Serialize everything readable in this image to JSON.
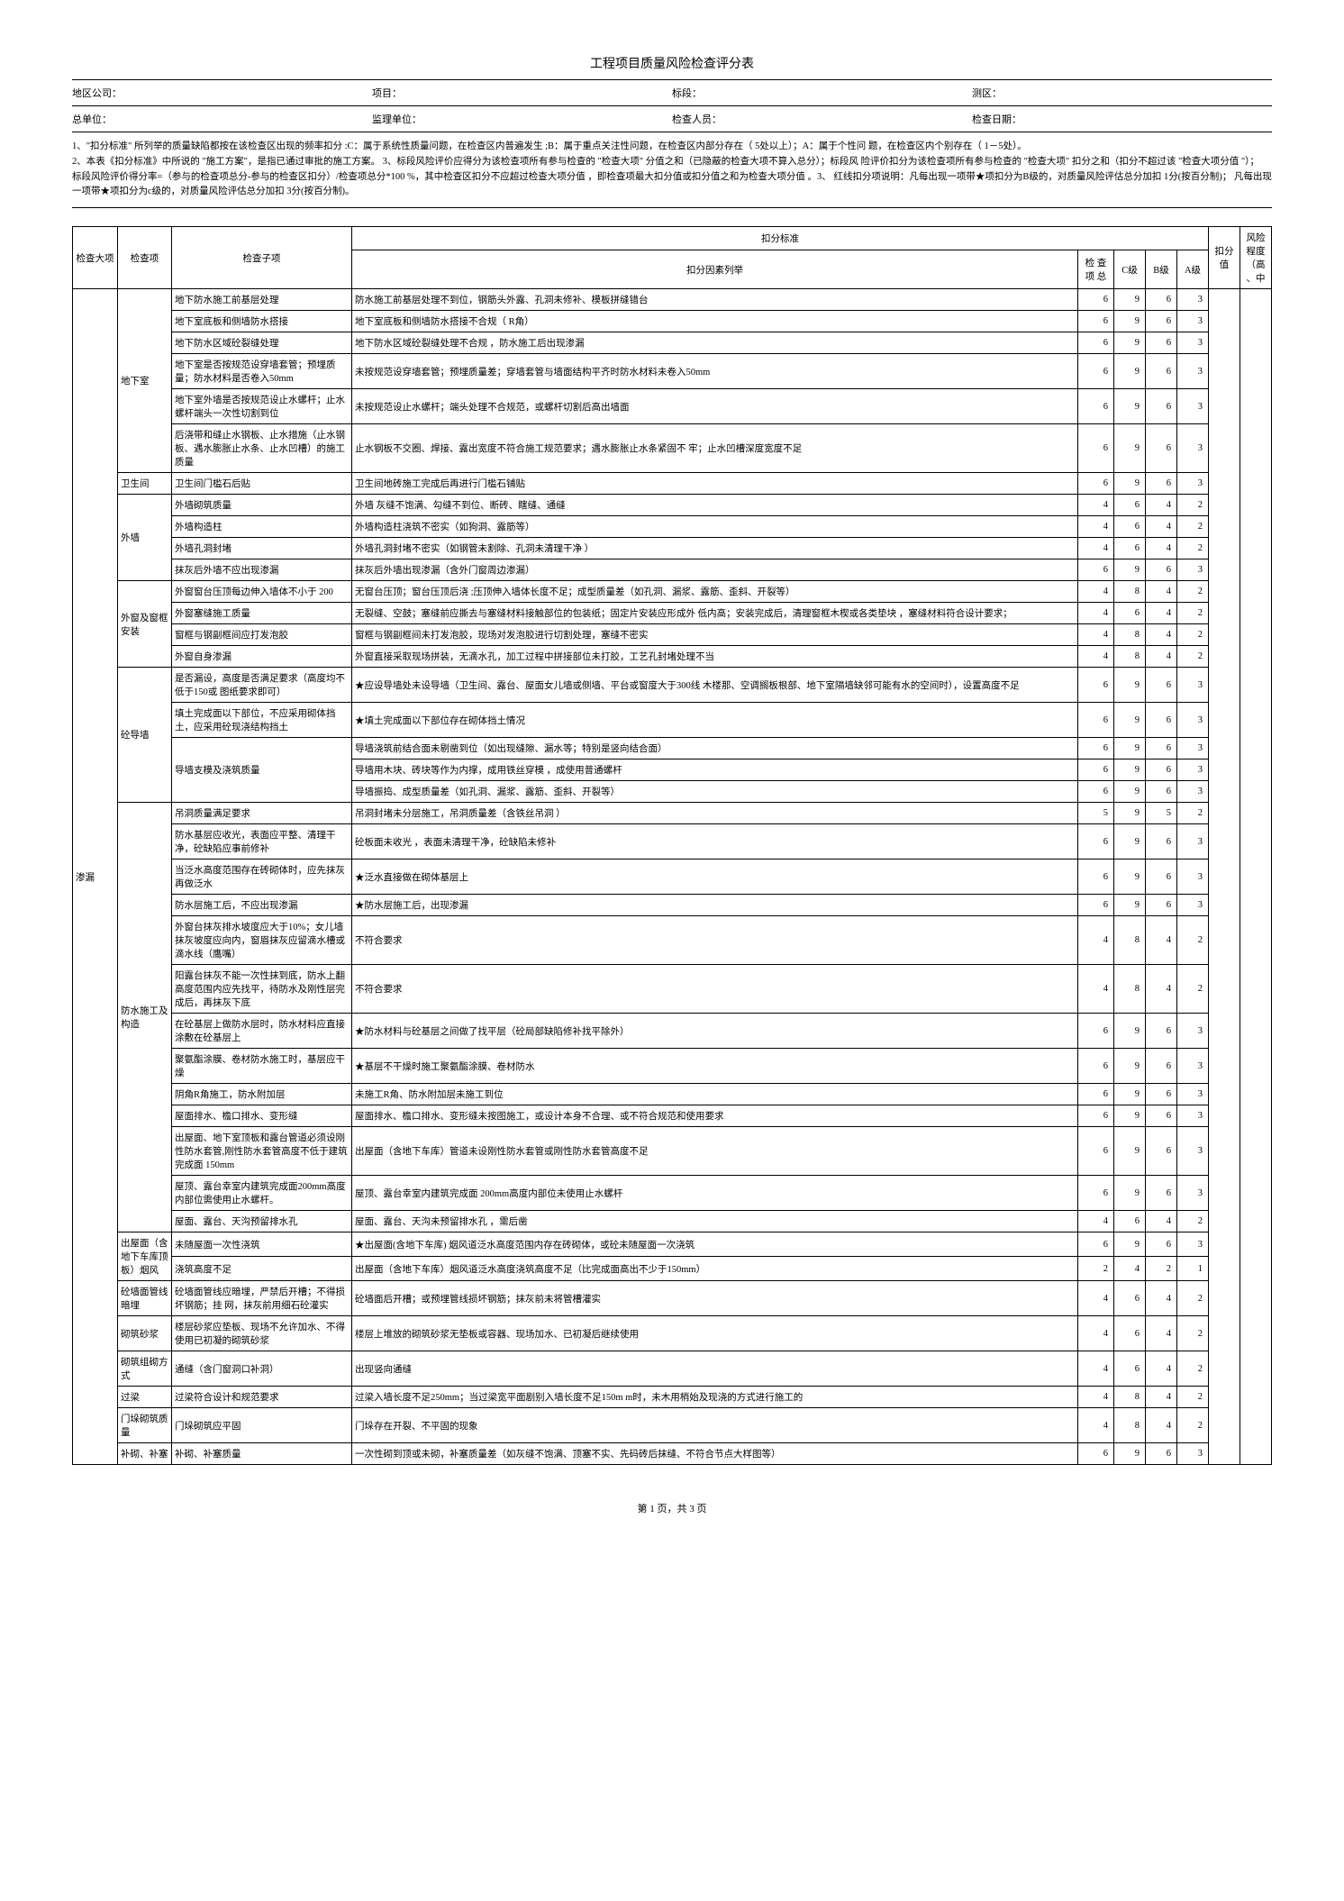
{
  "title": "工程项目质量风险检查评分表",
  "header1": {
    "region_label": "地区公司：",
    "project_label": "项目：",
    "section_label": "标段：",
    "survey_label": "测区："
  },
  "header2": {
    "general_unit_label": "总单位：",
    "supervision_label": "监理单位：",
    "inspector_label": "检查人员：",
    "date_label": "检查日期："
  },
  "notes": [
    "1、\"扣分标准\" 所列举的质量缺陷都按在该检查区出现的频率扣分  :C：属于系统性质量问题，在检查区内普遍发生 ;B：属于重点关注性问题，在检查区内部分存在（ 5处以上）；A：属于个性问 题，在检查区内个别存在（ 1－5处）。",
    "2、本表《扣分标准》中所说的 \"施工方案\"，是指已通过审批的施工方案。 3、标段风险评价应得分为该检查项所有参与检查的 \"检查大项\"       分值之和（已隐蔽的检查大项不算入总分）；标段风 险评价扣分为该检查项所有参与检查的 \"检查大项\" 扣分之和（扣分不超过该 \"检查大项分值 \"）；",
    "标段风险评价得分率=（参与的检查项总分-参与的检查区扣分）/检查项总分*100 %，其中检查区扣分不应超过检查大项分值 ，即检查项最大扣分值或扣分值之和为检查大项分值 。3、 红线扣分项说明：凡每出现一项带★项扣分为B级的，对质量风险评估总分加扣 1分(按百分制)； 凡每出现一项带★项扣分为c级的，对质量风险评估总分加扣 3分(按百分制)。"
  ],
  "thead": {
    "major": "检查大项",
    "check": "检查项",
    "sub": "检查子项",
    "std": "扣分标准",
    "factors": "扣分因素列举",
    "total": "检 查项 总",
    "c": "C级",
    "b": "B级",
    "a": "A级",
    "deduct": "扣分值",
    "risk": "风险程度（高、中"
  },
  "rows": [
    {
      "major": "渗漏",
      "check": "地下室",
      "sub": "地下防水施工前基层处理",
      "std": "防水施工前基层处理不到位，钢筋头外露、孔洞未修补、模板拼缝错台",
      "t": 6,
      "c": 9,
      "b": 6,
      "a": 3
    },
    {
      "sub": "地下室底板和侧墙防水搭接",
      "std": "地下室底板和侧墙防水搭接不合规（ R角）",
      "t": 6,
      "c": 9,
      "b": 6,
      "a": 3
    },
    {
      "sub": "地下防水区域砼裂缝处理",
      "std": "地下防水区域砼裂缝处理不合规 ，防水施工后出现渗漏",
      "t": 6,
      "c": 9,
      "b": 6,
      "a": 3
    },
    {
      "sub": "地下室是否按规范设穿墙套管；预埋质量；防水材料是否卷入50mm",
      "std": "未按规范设穿墙套管；预埋质量差；穿墙套管与墙面结构平齐时防水材料未卷入50mm",
      "t": 6,
      "c": 9,
      "b": 6,
      "a": 3
    },
    {
      "sub": "地下室外墙是否按规范设止水螺杆；止水螺杆端头一次性切割到位",
      "std": "未按规范设止水螺杆；端头处理不合规范，或螺杆切割后高出墙面",
      "t": 6,
      "c": 9,
      "b": 6,
      "a": 3
    },
    {
      "sub": "后浇带和缝止水钢板、止水措施（止水钢板、遇水膨胀止水条、止水凹槽）的施工质量",
      "std": "止水钢板不交圈、焊接、露出宽度不符合施工规范要求；遇水膨胀止水条紧固不         牢；止水凹槽深度宽度不足",
      "t": 6,
      "c": 9,
      "b": 6,
      "a": 3
    },
    {
      "check": "卫生间",
      "sub": "卫生间门槛石后贴",
      "std": "卫生间地砖施工完成后再进行门槛石铺贴",
      "t": 6,
      "c": 9,
      "b": 6,
      "a": 3
    },
    {
      "check": "外墙",
      "sub": "外墙砌筑质量",
      "std": "外墙 灰缝不饱满、勾缝不到位、断砖、瞎缝、通缝",
      "t": 4,
      "c": 6,
      "b": 4,
      "a": 2
    },
    {
      "sub": "外墙构造柱",
      "std": "外墙构造柱浇筑不密实（如狗洞、露筋等）",
      "t": 4,
      "c": 6,
      "b": 4,
      "a": 2
    },
    {
      "sub": "外墙孔洞封堵",
      "std": "外墙孔洞封堵不密实（如钢管未割除、孔洞未清理干净  ）",
      "t": 4,
      "c": 6,
      "b": 4,
      "a": 2
    },
    {
      "sub": "抹灰后外墙不应出现渗漏",
      "std": "抹灰后外墙出现渗漏（含外门窗周边渗漏）",
      "t": 6,
      "c": 9,
      "b": 6,
      "a": 3
    },
    {
      "check": "外窗及窗框安装",
      "sub": "外窗窗台压顶每边伸入墙体不小于  200",
      "std": "无窗台压顶；窗台压顶后浇 ;压顶伸入墙体长度不足；成型质量差（如孔洞、漏浆、露筋、歪斜、开裂等）",
      "t": 4,
      "c": 8,
      "b": 4,
      "a": 2
    },
    {
      "sub": "外窗塞缝施工质量",
      "std": "无裂缝、空鼓；塞缝前应撕去与塞缝材料接触部位的包装纸；固定片安装应形成外  低内高；安装完成后，清理窗框木楔或各类垫块 ，塞缝材料符合设计要求；",
      "t": 4,
      "c": 6,
      "b": 4,
      "a": 2
    },
    {
      "sub": "窗框与钢副框间应打发泡胶",
      "std": "窗框与钢副框间未打发泡胶，现场对发泡胶进行切割处理，塞缝不密实",
      "t": 4,
      "c": 8,
      "b": 4,
      "a": 2
    },
    {
      "sub": "外窗自身渗漏",
      "std": "外窗直接采取现场拼装，无滴水孔，加工过程中拼接部位未打胶，工艺孔封堵处理不当",
      "t": 4,
      "c": 8,
      "b": 4,
      "a": 2
    },
    {
      "check": "砼导墙",
      "sub": "是否漏设，高度是否满足要求（高度均不低于150或 图纸要求即可）",
      "std": "★应设导墙处未设导墙（卫生间、露台、屋面女儿墙或侧墙、平台或窗度大于300线 木楼那、空调搁板根部、地下室隔墙缺邻可能有水的空间时），设置高度不足",
      "t": 6,
      "c": 9,
      "b": 6,
      "a": 3
    },
    {
      "sub": "填土完成面以下部位，不应采用砌体挡土，应采用砼现浇结构挡土",
      "std": "★填土完成面以下部位存在砌体挡土情况",
      "t": 6,
      "c": 9,
      "b": 6,
      "a": 3
    },
    {
      "sub": "导墙支模及浇筑质量",
      "std": "导墙浇筑前结合面未剔凿到位（如出现缝隙、漏水等；特别是竖向结合面）",
      "t": 6,
      "c": 9,
      "b": 6,
      "a": 3
    },
    {
      "std": "导墙用木块、砖块等作为内撑，成用铁丝穿模 ，成使用普通螺杆",
      "t": 6,
      "c": 9,
      "b": 6,
      "a": 3
    },
    {
      "std": "导墙振捣、成型质量差（如孔洞、漏浆、露筋、歪斜、开裂等）",
      "t": 6,
      "c": 9,
      "b": 6,
      "a": 3
    },
    {
      "check": "防水施工及构造",
      "sub": "吊洞质量满足要求",
      "std": "吊洞封堵未分层施工，吊洞质量差（含铁丝吊洞 ）",
      "t": 5,
      "c": 9,
      "b": 5,
      "a": 2
    },
    {
      "sub": "防水基层应收光，表面应平整、清理干净，砼缺陷应事前修补",
      "std": "砼板面未收光 ，表面未清理干净，砼缺陷未修补",
      "t": 6,
      "c": 9,
      "b": 6,
      "a": 3
    },
    {
      "sub": "当泛水高度范围存在砖砌体时，应先抹灰再做泛水",
      "std": "★泛水直接做在砌体基层上",
      "t": 6,
      "c": 9,
      "b": 6,
      "a": 3
    },
    {
      "sub": "防水层施工后，不应出现渗漏",
      "std": "★防水层施工后，出现渗漏",
      "t": 6,
      "c": 9,
      "b": 6,
      "a": 3
    },
    {
      "sub": "外窗台抹灰排水坡度应大于10%；女儿墙抹灰坡度应向内，窗眉抹灰应留滴水槽或滴水线（鹰嘴）",
      "std": "不符合要求",
      "t": 4,
      "c": 8,
      "b": 4,
      "a": 2
    },
    {
      "sub": "阳露台抹灰不能一次性抹到底，防水上翻高度范围内应先找平，待防水及刚性层完成后，再抹灰下底",
      "std": "不符合要求",
      "t": 4,
      "c": 8,
      "b": 4,
      "a": 2
    },
    {
      "sub": "在砼基层上做防水层时，防水材料应直接涂敷在砼基层上",
      "std": "★防水材料与砼基层之间做了找平层（砼局部缺陷修补找平除外）",
      "t": 6,
      "c": 9,
      "b": 6,
      "a": 3
    },
    {
      "sub": "聚氨酯涂膜、卷材防水施工时，基层应干燥",
      "std": "★基层不干燥时施工聚氨酯涂膜、卷材防水",
      "t": 6,
      "c": 9,
      "b": 6,
      "a": 3
    },
    {
      "sub": "阴角R角施工，防水附加层",
      "std": "未施工R角、防水附加层未施工到位",
      "t": 6,
      "c": 9,
      "b": 6,
      "a": 3
    },
    {
      "sub": "屋面排水、檐口排水、变形缝",
      "std": "屋面排水、檐口排水、变形缝未按图施工，或设计本身不合理、或不符合规范和使用要求",
      "t": 6,
      "c": 9,
      "b": 6,
      "a": 3
    },
    {
      "sub": "出屋面、地下室顶板和露台管道必须设刚性防水套管,刚性防水套管高度不低于建筑完成面 150mm",
      "std": "出屋面（含地下车库）管道未设刚性防水套管或刚性防水套管高度不足",
      "t": 6,
      "c": 9,
      "b": 6,
      "a": 3
    },
    {
      "sub": "屋顶、露台幸室内建筑完成面200mm高度内部位需使用止水螺杆。",
      "std": "屋顶、露台幸室内建筑完成面 200mm高度内部位未使用止水螺杆",
      "t": 6,
      "c": 9,
      "b": 6,
      "a": 3
    },
    {
      "sub": "屋面、露台、天沟预留排水孔",
      "std": "屋面、露台、天沟未预留排水孔 ，需后凿",
      "t": 4,
      "c": 6,
      "b": 4,
      "a": 2
    },
    {
      "check": "出屋面（含地下车库顶板）烟风",
      "sub": "未随屋面一次性浇筑",
      "std": "★出屋面(含地下车库) 烟风道泛水高度范围内存在砖砌体，或砼未随屋面一次浇筑",
      "t": 6,
      "c": 9,
      "b": 6,
      "a": 3
    },
    {
      "sub": "浇筑高度不足",
      "std": "出屋面（含地下车库）烟风道泛水高度浇筑高度不足（比完成面高出不少于150mm）",
      "t": 2,
      "c": 4,
      "b": 2,
      "a": 1
    },
    {
      "check": "砼墙面管线暗埋",
      "sub": "砼墙面管线应暗埋，严禁后开槽；不得损坏钢筋；挂 网，抹灰前用细石砼灌实",
      "std": "砼墙面后开槽；或预埋管线损坏钢筋；抹灰前未将管槽灌实",
      "t": 4,
      "c": 6,
      "b": 4,
      "a": 2
    },
    {
      "check": "砌筑砂浆",
      "sub": "楼层砂浆应垫板、现场不允许加水、不得使用已初凝的砌筑砂浆",
      "std": "楼层上堆放的砌筑砂浆无垫板或容器、现场加水、已初凝后继续使用",
      "t": 4,
      "c": 6,
      "b": 4,
      "a": 2
    },
    {
      "check": "砌筑组砌方式",
      "sub": "通缝（含门窗洞口补洞）",
      "std": "出现竖向通缝",
      "t": 4,
      "c": 6,
      "b": 4,
      "a": 2
    },
    {
      "check": "过梁",
      "sub": "过梁符合设计和规范要求",
      "std": "过梁入墙长度不足250mm；当过梁宽平面剧别入墙长度不足150m      m时，未木用梢始及现浇的方式进行施工的",
      "t": 4,
      "c": 8,
      "b": 4,
      "a": 2
    },
    {
      "check": "门垛砌筑质量",
      "sub": "门垛砌筑应平固",
      "std": "门垛存在开裂、不平固的现象",
      "t": 4,
      "c": 8,
      "b": 4,
      "a": 2
    },
    {
      "check": "补砌、补塞",
      "sub": "补砌、补塞质量",
      "std": "一次性砌到顶或未砌，补塞质量差（如灰缝不饱满、顶塞不实、先码砖后抹缝、不符合节点大样图等）",
      "t": 6,
      "c": 9,
      "b": 6,
      "a": 3
    }
  ],
  "footer": "第 1 页，共 3 页"
}
